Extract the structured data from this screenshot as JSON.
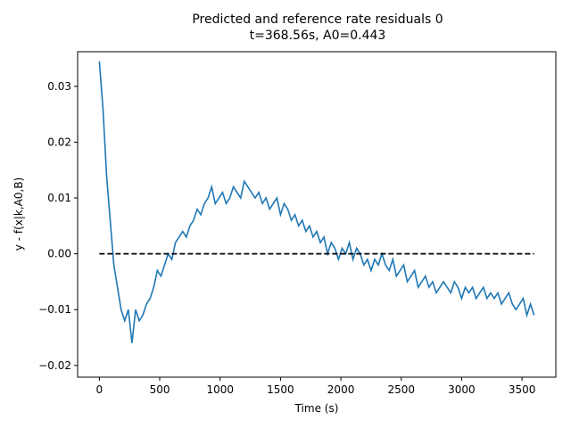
{
  "chart_data": {
    "type": "line",
    "title": [
      "Predicted and reference rate residuals 0",
      "t=368.56s, A0=0.443"
    ],
    "xlabel": "Time (s)",
    "ylabel": "y - f(x|k,A0,B)",
    "xlim": [
      -180,
      3780
    ],
    "ylim": [
      -0.0221,
      0.0362
    ],
    "xticks": [
      0,
      500,
      1000,
      1500,
      2000,
      2500,
      3000,
      3500
    ],
    "yticks": [
      {
        "value": -0.02,
        "label": "−0.02"
      },
      {
        "value": -0.01,
        "label": "−0.01"
      },
      {
        "value": 0,
        "label": "0.00"
      },
      0.01,
      0.02,
      0.03
    ],
    "series": [
      {
        "color": "#1f77b4",
        "dash": false,
        "x": [
          0,
          30,
          60,
          90,
          120,
          150,
          180,
          210,
          240,
          270,
          300,
          330,
          360,
          390,
          420,
          450,
          480,
          510,
          540,
          570,
          600,
          630,
          660,
          690,
          720,
          750,
          780,
          810,
          840,
          870,
          900,
          930,
          960,
          990,
          1020,
          1050,
          1080,
          1110,
          1140,
          1170,
          1200,
          1230,
          1260,
          1290,
          1320,
          1350,
          1380,
          1410,
          1440,
          1470,
          1500,
          1530,
          1560,
          1590,
          1620,
          1650,
          1680,
          1710,
          1740,
          1770,
          1800,
          1830,
          1860,
          1890,
          1920,
          1950,
          1980,
          2010,
          2040,
          2070,
          2100,
          2130,
          2160,
          2190,
          2220,
          2250,
          2280,
          2310,
          2340,
          2370,
          2400,
          2430,
          2460,
          2490,
          2520,
          2550,
          2580,
          2610,
          2640,
          2670,
          2700,
          2730,
          2760,
          2790,
          2820,
          2850,
          2880,
          2910,
          2940,
          2970,
          3000,
          3030,
          3060,
          3090,
          3120,
          3150,
          3180,
          3210,
          3240,
          3270,
          3300,
          3330,
          3360,
          3390,
          3420,
          3450,
          3480,
          3510,
          3540,
          3570,
          3600
        ],
        "values": [
          0.0345,
          0.026,
          0.014,
          0.006,
          -0.002,
          -0.006,
          -0.01,
          -0.012,
          -0.01,
          -0.016,
          -0.01,
          -0.012,
          -0.011,
          -0.009,
          -0.008,
          -0.006,
          -0.003,
          -0.004,
          -0.002,
          0.0,
          -0.001,
          0.002,
          0.003,
          0.004,
          0.003,
          0.005,
          0.006,
          0.008,
          0.007,
          0.009,
          0.01,
          0.012,
          0.009,
          0.01,
          0.011,
          0.009,
          0.01,
          0.012,
          0.011,
          0.01,
          0.013,
          0.012,
          0.011,
          0.01,
          0.011,
          0.009,
          0.01,
          0.008,
          0.009,
          0.01,
          0.007,
          0.009,
          0.008,
          0.006,
          0.007,
          0.005,
          0.006,
          0.004,
          0.005,
          0.003,
          0.004,
          0.002,
          0.003,
          0.0,
          0.002,
          0.001,
          -0.001,
          0.001,
          0.0,
          0.002,
          -0.001,
          0.001,
          0.0,
          -0.002,
          -0.001,
          -0.003,
          -0.001,
          -0.002,
          0.0,
          -0.002,
          -0.003,
          -0.001,
          -0.004,
          -0.003,
          -0.002,
          -0.005,
          -0.004,
          -0.003,
          -0.006,
          -0.005,
          -0.004,
          -0.006,
          -0.005,
          -0.007,
          -0.006,
          -0.005,
          -0.006,
          -0.007,
          -0.005,
          -0.006,
          -0.008,
          -0.006,
          -0.007,
          -0.006,
          -0.008,
          -0.007,
          -0.006,
          -0.008,
          -0.007,
          -0.008,
          -0.007,
          -0.009,
          -0.008,
          -0.007,
          -0.009,
          -0.01,
          -0.009,
          -0.008,
          -0.011,
          -0.009,
          -0.011
        ]
      },
      {
        "color": "#000000",
        "dash": true,
        "x": [
          0,
          3600
        ],
        "values": [
          0,
          0
        ]
      }
    ]
  }
}
